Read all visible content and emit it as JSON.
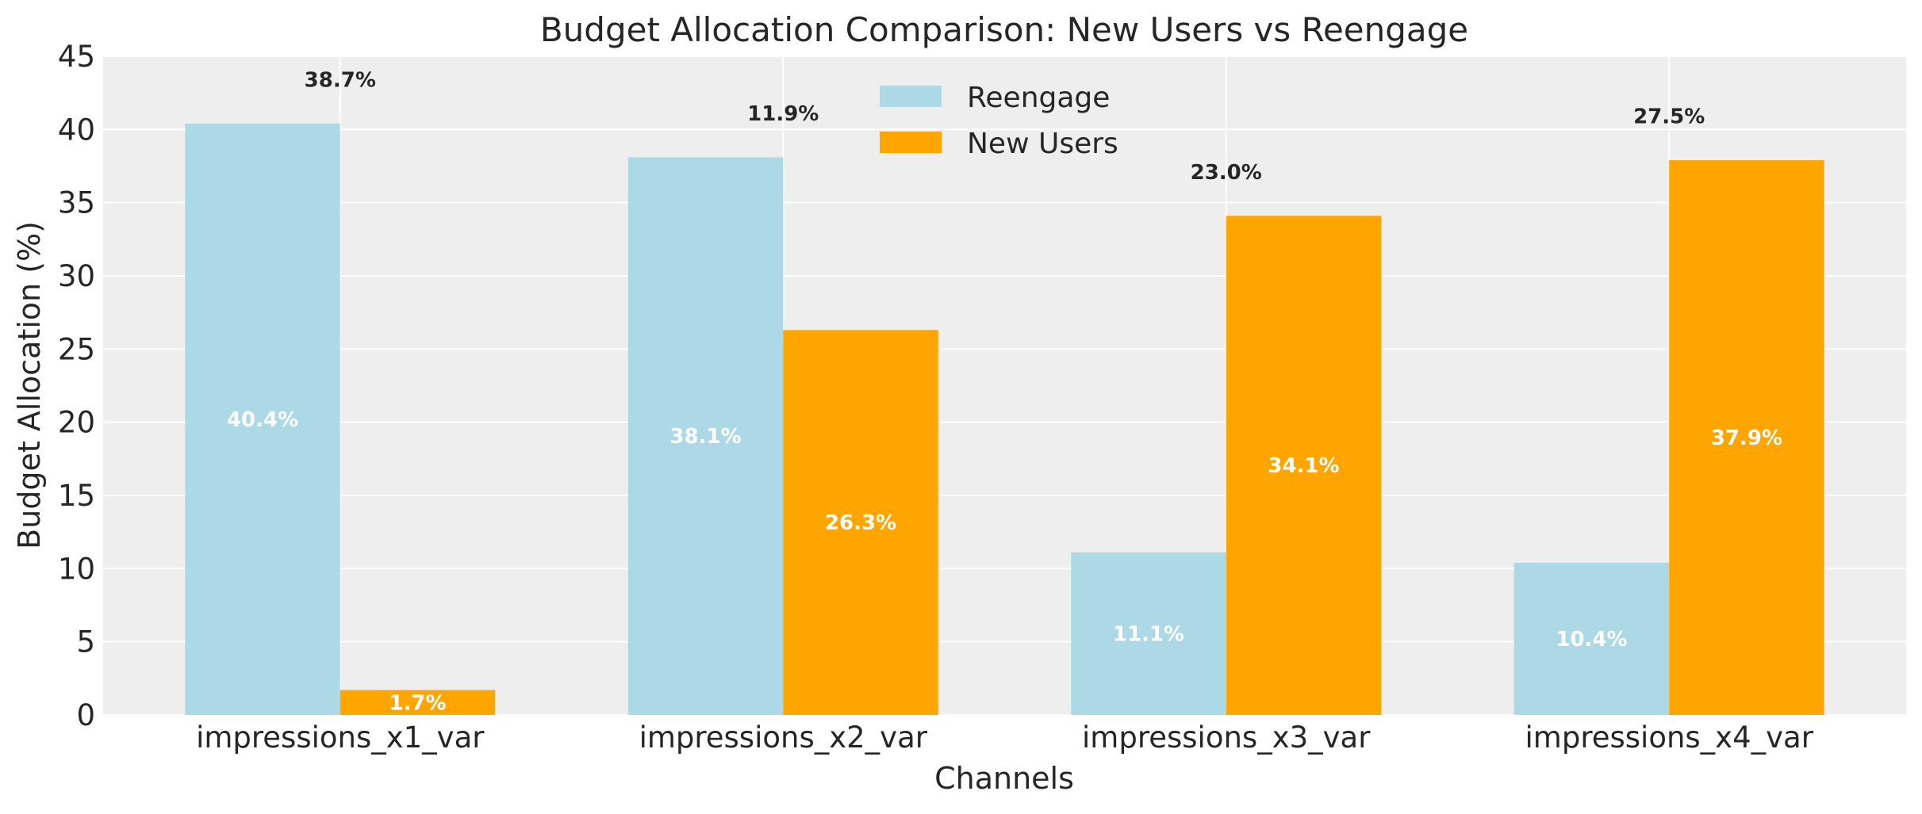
{
  "chart_data": {
    "type": "bar",
    "title": "Budget Allocation Comparison: New Users vs Reengage",
    "xlabel": "Channels",
    "ylabel": "Budget Allocation (%)",
    "categories": [
      "impressions_x1_var",
      "impressions_x2_var",
      "impressions_x3_var",
      "impressions_x4_var"
    ],
    "series": [
      {
        "name": "Reengage",
        "color": "#add8e6",
        "values": [
          40.4,
          38.1,
          11.1,
          10.4
        ],
        "labels": [
          "40.4%",
          "38.1%",
          "11.1%",
          "10.4%"
        ]
      },
      {
        "name": "New Users",
        "color": "#ffa500",
        "values": [
          1.7,
          26.3,
          34.1,
          37.9
        ],
        "labels": [
          "1.7%",
          "26.3%",
          "34.1%",
          "37.9%"
        ]
      }
    ],
    "difference_labels": [
      "38.7%",
      "11.9%",
      "23.0%",
      "27.5%"
    ],
    "ylim": [
      0,
      45
    ],
    "yticks": [
      0,
      5,
      10,
      15,
      20,
      25,
      30,
      35,
      40,
      45
    ],
    "grid": true,
    "legend": "upper center",
    "background": "#eeeeee"
  }
}
